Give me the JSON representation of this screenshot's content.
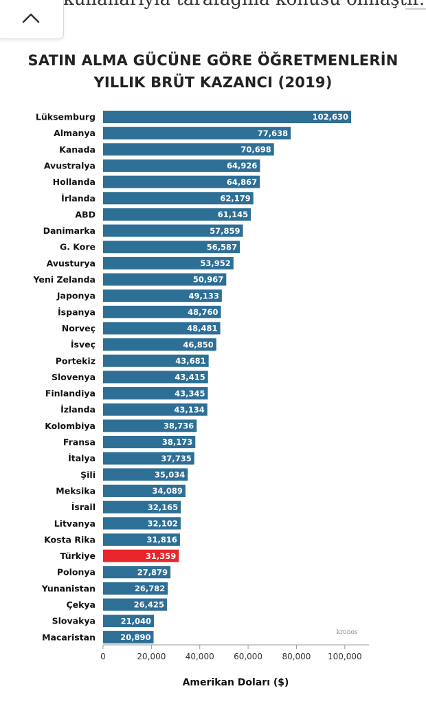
{
  "page": {
    "cut_text": "kullanarıyla tarafağına konusu olmaştır."
  },
  "colors": {
    "bar": "#2e6f96",
    "highlight": "#e8252a",
    "axis": "#9a9a9a"
  },
  "icons": {
    "collapse": "chevron-up-icon"
  },
  "watermark": "kronos",
  "chart_data": {
    "type": "bar",
    "orientation": "horizontal",
    "title": "SATIN ALMA GÜCÜNE GÖRE ÖĞRETMENLERİN YILLIK BRÜT KAZANCI (2019)",
    "title_lines": [
      "SATIN ALMA GÜCÜNE GÖRE ÖĞRETMENLERİN",
      "YILLIK BRÜT KAZANCI (2019)"
    ],
    "xlabel": "Amerikan Doları ($)",
    "ylabel": "",
    "xlim": [
      0,
      110000
    ],
    "ticks": [
      0,
      20000,
      40000,
      60000,
      80000,
      100000
    ],
    "tick_labels": [
      "0",
      "20,000",
      "40,000",
      "60,000",
      "80,000",
      "100,000"
    ],
    "highlight": "Türkiye",
    "grid": false,
    "categories": [
      "Lüksemburg",
      "Almanya",
      "Kanada",
      "Avustralya",
      "Hollanda",
      "İrlanda",
      "ABD",
      "Danimarka",
      "G. Kore",
      "Avusturya",
      "Yeni Zelanda",
      "Japonya",
      "İspanya",
      "Norveç",
      "İsveç",
      "Portekiz",
      "Slovenya",
      "Finlandiya",
      "İzlanda",
      "Kolombiya",
      "Fransa",
      "İtalya",
      "Şili",
      "Meksika",
      "İsrail",
      "Litvanya",
      "Kosta Rika",
      "Türkiye",
      "Polonya",
      "Yunanistan",
      "Çekya",
      "Slovakya",
      "Macaristan"
    ],
    "values": [
      102630,
      77638,
      70698,
      64926,
      64867,
      62179,
      61145,
      57859,
      56587,
      53952,
      50967,
      49133,
      48760,
      48481,
      46850,
      43681,
      43415,
      43345,
      43134,
      38736,
      38173,
      37735,
      35034,
      34089,
      32165,
      32102,
      31816,
      31359,
      27879,
      26782,
      26425,
      21040,
      20890
    ],
    "value_labels": [
      "102,630",
      "77,638",
      "70,698",
      "64,926",
      "64,867",
      "62,179",
      "61,145",
      "57,859",
      "56,587",
      "53,952",
      "50,967",
      "49,133",
      "48,760",
      "48,481",
      "46,850",
      "43,681",
      "43,415",
      "43,345",
      "43,134",
      "38,736",
      "38,173",
      "37,735",
      "35,034",
      "34,089",
      "32,165",
      "32,102",
      "31,816",
      "31,359",
      "27,879",
      "26,782",
      "26,425",
      "21,040",
      "20,890"
    ]
  }
}
